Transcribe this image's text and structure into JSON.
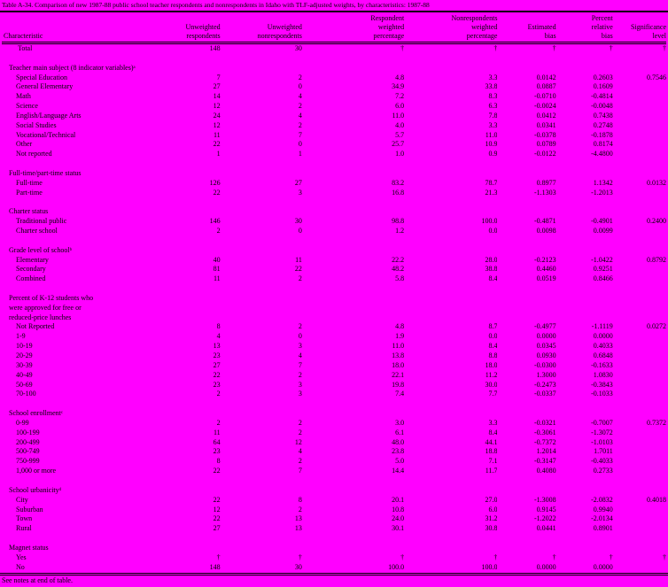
{
  "colors": {
    "background": "#FF00FF",
    "text": "#000000"
  },
  "title": "Table A-34. Comparison of new 1987-88 public school teacher respondents and nonrespondents in Idaho with TLF-adjusted weights, by characteristics: 1987-88",
  "columns": [
    [
      "Characteristic"
    ],
    [
      "Unweighted",
      "respondents"
    ],
    [
      "Unweighted",
      "nonrespondents"
    ],
    [
      "Respondent",
      "weighted",
      "percentage"
    ],
    [
      "Nonrespondents",
      "weighted",
      "percentage"
    ],
    [
      "Estimated",
      "bias"
    ],
    [
      "Percent",
      "relative",
      "bias"
    ],
    [
      "Significance",
      "level"
    ]
  ],
  "total_row": {
    "label": "Total",
    "values": [
      "148",
      "30",
      "†",
      "†",
      "†",
      "†",
      "†"
    ]
  },
  "sections": [
    {
      "header_lines": [
        "Teacher main subject (8 indicator variables)ᵃ"
      ],
      "rows": [
        {
          "label": "Special Education",
          "values": [
            "7",
            "2",
            "4.8",
            "3.3",
            "0.0142",
            "0.2603",
            "0.7546"
          ]
        },
        {
          "label": "General Elementary",
          "values": [
            "27",
            "0",
            "34.9",
            "33.8",
            "0.0887",
            "0.1609",
            ""
          ]
        },
        {
          "label": "Math",
          "values": [
            "14",
            "4",
            "7.2",
            "8.3",
            "-0.0710",
            "-0.4814",
            ""
          ]
        },
        {
          "label": "Science",
          "values": [
            "12",
            "2",
            "6.0",
            "6.3",
            "-0.0024",
            "-0.0048",
            ""
          ]
        },
        {
          "label": "English/Language Arts",
          "values": [
            "24",
            "4",
            "11.0",
            "7.8",
            "0.0412",
            "0.7438",
            ""
          ]
        },
        {
          "label": "Social Studies",
          "values": [
            "12",
            "2",
            "4.0",
            "3.3",
            "0.0341",
            "0.2748",
            ""
          ]
        },
        {
          "label": "Vocational/Technical",
          "values": [
            "11",
            "7",
            "5.7",
            "11.0",
            "-0.0378",
            "-0.1878",
            ""
          ]
        },
        {
          "label": "Other",
          "values": [
            "22",
            "0",
            "25.7",
            "10.9",
            "0.0789",
            "0.8174",
            ""
          ]
        },
        {
          "label": "Not reported",
          "values": [
            "1",
            "1",
            "1.0",
            "0.9",
            "-0.0122",
            "-4.4800",
            ""
          ]
        }
      ]
    },
    {
      "header_lines": [
        "Full-time/part-time status"
      ],
      "rows": [
        {
          "label": "Full-time",
          "values": [
            "126",
            "27",
            "83.2",
            "78.7",
            "0.8977",
            "1.1342",
            "0.0132"
          ]
        },
        {
          "label": "Part-time",
          "values": [
            "22",
            "3",
            "16.8",
            "21.3",
            "-1.1303",
            "-1.2013",
            ""
          ]
        }
      ]
    },
    {
      "header_lines": [
        "Charter status"
      ],
      "rows": [
        {
          "label": "Traditional public",
          "values": [
            "146",
            "30",
            "98.8",
            "100.0",
            "-0.4871",
            "-0.4901",
            "0.2400"
          ]
        },
        {
          "label": "Charter school",
          "values": [
            "2",
            "0",
            "1.2",
            "0.0",
            "0.0098",
            "0.0099",
            ""
          ]
        }
      ]
    },
    {
      "header_lines": [
        "Grade level of schoolᵇ"
      ],
      "rows": [
        {
          "label": "Elementary",
          "values": [
            "40",
            "11",
            "22.2",
            "28.0",
            "-0.2123",
            "-1.0422",
            "0.8792"
          ]
        },
        {
          "label": "Secondary",
          "values": [
            "81",
            "22",
            "48.2",
            "38.8",
            "0.4460",
            "0.9251",
            ""
          ]
        },
        {
          "label": "Combined",
          "values": [
            "11",
            "2",
            "5.8",
            "8.4",
            "0.0519",
            "0.8466",
            ""
          ]
        }
      ]
    },
    {
      "header_lines": [
        "Percent of K-12 students who",
        "were approved for free or",
        "reduced-price lunches"
      ],
      "rows": [
        {
          "label": "Not Reported",
          "values": [
            "8",
            "2",
            "4.8",
            "8.7",
            "-0.4977",
            "-1.1119",
            "0.0272"
          ]
        },
        {
          "label": "1-9",
          "values": [
            "4",
            "0",
            "1.9",
            "0.0",
            "0.0000",
            "0.0000",
            ""
          ]
        },
        {
          "label": "10-19",
          "values": [
            "13",
            "3",
            "11.0",
            "8.4",
            "0.0345",
            "0.4033",
            ""
          ]
        },
        {
          "label": "20-29",
          "values": [
            "23",
            "4",
            "13.8",
            "8.8",
            "0.0930",
            "0.6848",
            ""
          ]
        },
        {
          "label": "30-39",
          "values": [
            "27",
            "7",
            "18.0",
            "18.0",
            "-0.0300",
            "-0.1633",
            ""
          ]
        },
        {
          "label": "40-49",
          "values": [
            "22",
            "2",
            "22.1",
            "11.2",
            "1.3000",
            "1.0830",
            ""
          ]
        },
        {
          "label": "50-69",
          "values": [
            "23",
            "3",
            "19.8",
            "30.0",
            "-0.2473",
            "-0.3843",
            ""
          ]
        },
        {
          "label": "70-100",
          "values": [
            "2",
            "3",
            "7.4",
            "7.7",
            "-0.0337",
            "-0.1033",
            ""
          ]
        }
      ]
    },
    {
      "header_lines": [
        "School enrollmentᶜ"
      ],
      "rows": [
        {
          "label": "0-99",
          "values": [
            "2",
            "2",
            "3.0",
            "3.3",
            "-0.0321",
            "-0.7007",
            "0.7372"
          ]
        },
        {
          "label": "100-199",
          "values": [
            "11",
            "2",
            "6.1",
            "8.4",
            "-0.3061",
            "-1.3072",
            ""
          ]
        },
        {
          "label": "200-499",
          "values": [
            "64",
            "12",
            "48.0",
            "44.1",
            "-0.7372",
            "-1.0103",
            ""
          ]
        },
        {
          "label": "500-749",
          "values": [
            "23",
            "4",
            "23.8",
            "18.8",
            "1.2014",
            "1.7011",
            ""
          ]
        },
        {
          "label": "750-999",
          "values": [
            "8",
            "2",
            "5.0",
            "7.1",
            "-0.3147",
            "-0.4033",
            ""
          ]
        },
        {
          "label": "1,000 or more",
          "values": [
            "22",
            "7",
            "14.4",
            "11.7",
            "0.4080",
            "0.2733",
            ""
          ]
        }
      ]
    },
    {
      "header_lines": [
        "School urbanicityᵈ"
      ],
      "rows": [
        {
          "label": "City",
          "values": [
            "22",
            "8",
            "20.1",
            "27.0",
            "-1.3008",
            "-2.0832",
            "0.4018"
          ]
        },
        {
          "label": "Suburban",
          "values": [
            "12",
            "2",
            "10.8",
            "6.0",
            "0.9145",
            "0.9940",
            ""
          ]
        },
        {
          "label": "Town",
          "values": [
            "22",
            "13",
            "24.0",
            "31.2",
            "-1.2022",
            "-2.0134",
            ""
          ]
        },
        {
          "label": "Rural",
          "values": [
            "27",
            "13",
            "30.1",
            "30.8",
            "0.0441",
            "0.8901",
            ""
          ]
        }
      ]
    },
    {
      "header_lines": [
        "Magnet status"
      ],
      "rows": [
        {
          "label": "Yes",
          "values": [
            "†",
            "†",
            "†",
            "†",
            "†",
            "†",
            "†"
          ]
        },
        {
          "label": "No",
          "values": [
            "148",
            "30",
            "100.0",
            "100.0",
            "0.0000",
            "0.0000",
            ""
          ]
        }
      ]
    }
  ],
  "footnote": "See notes at end of table."
}
